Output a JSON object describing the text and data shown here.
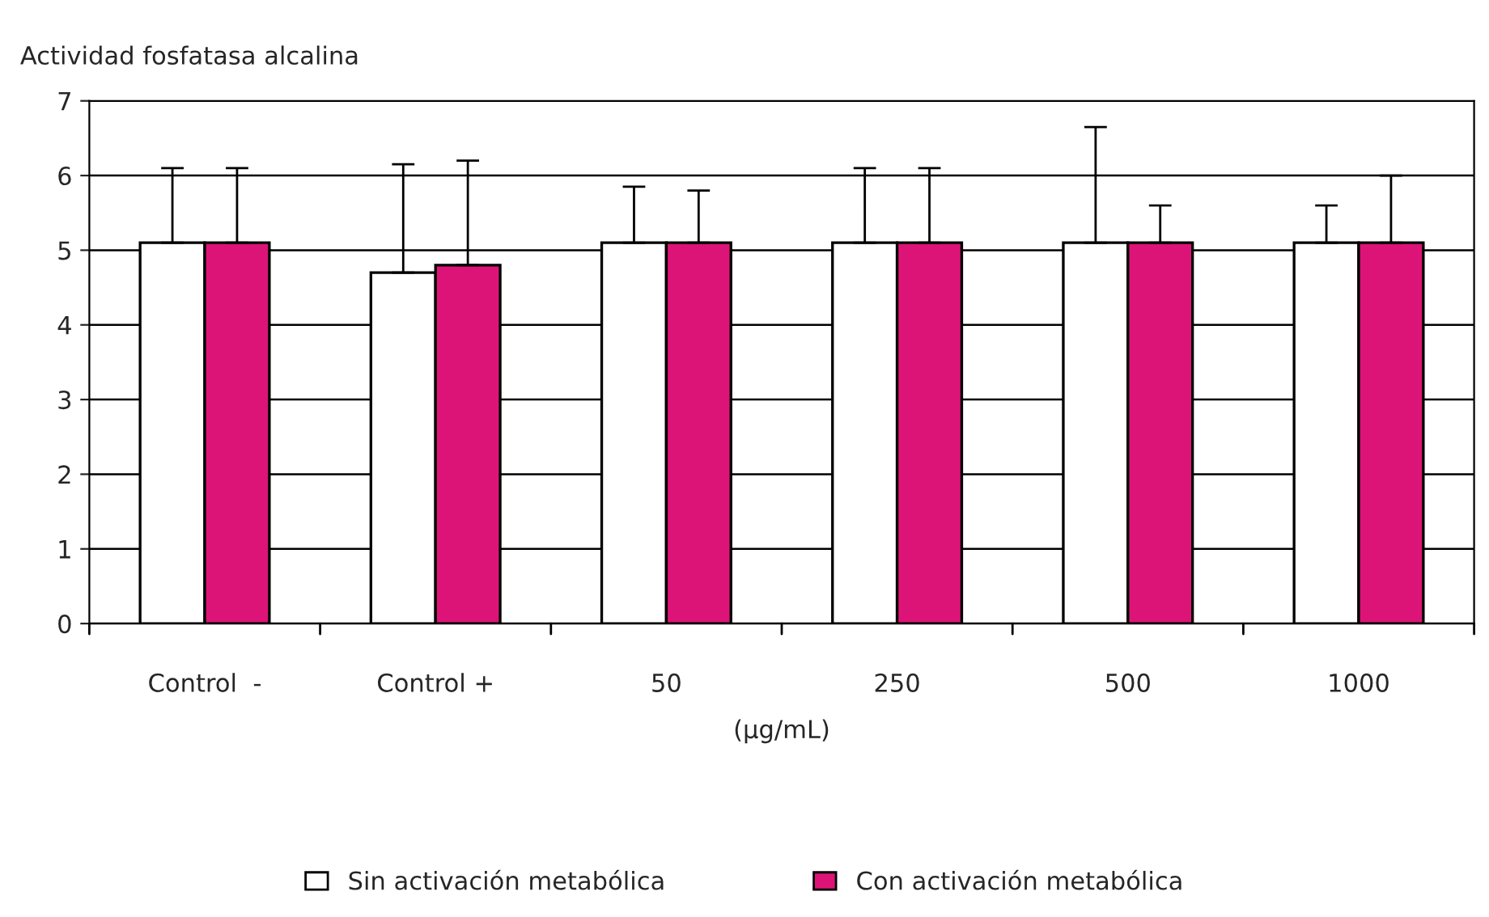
{
  "chart_data": {
    "type": "bar",
    "ylabel": "Actividad fosfatasa alcalina",
    "xlabel": "(µg/mL)",
    "categories": [
      "Control  -",
      "Control +",
      "50",
      "250",
      "500",
      "1000"
    ],
    "series": [
      {
        "name": "Sin activación metabólica",
        "color": "#ffffff",
        "values": [
          5.1,
          4.7,
          5.1,
          5.1,
          5.1,
          5.1
        ],
        "errors": [
          [
            5.1,
            6.1
          ],
          [
            4.7,
            6.15
          ],
          [
            5.1,
            5.85
          ],
          [
            5.1,
            6.1
          ],
          [
            5.1,
            6.65
          ],
          [
            5.1,
            5.6
          ]
        ]
      },
      {
        "name": "Con activación metabólica",
        "color": "#dd1477",
        "values": [
          5.1,
          4.8,
          5.1,
          5.1,
          5.1,
          5.1
        ],
        "errors": [
          [
            5.1,
            6.1
          ],
          [
            4.8,
            6.2
          ],
          [
            5.1,
            5.8
          ],
          [
            5.1,
            6.1
          ],
          [
            5.1,
            5.6
          ],
          [
            5.1,
            6.0
          ]
        ]
      }
    ],
    "ylim": [
      0,
      7
    ],
    "yticks": [
      0,
      1,
      2,
      3,
      4,
      5,
      6,
      7
    ],
    "grid": "y",
    "legend": "bottom"
  }
}
